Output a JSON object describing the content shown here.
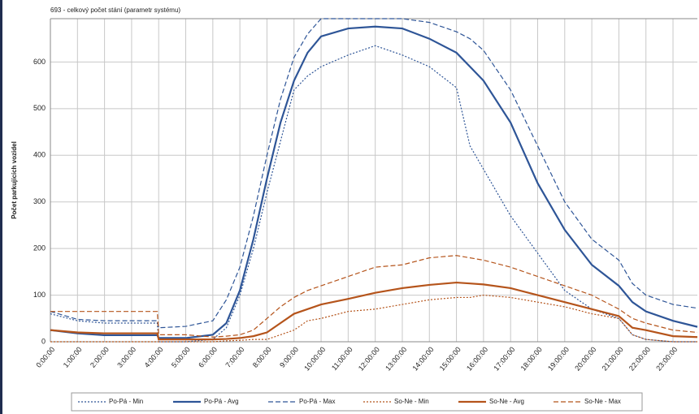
{
  "chart_data": {
    "type": "line",
    "annotation": {
      "text": "693 - celkový počet stání (parametr systému)",
      "value": 693
    },
    "y_label": "Počet parkujících vozidel",
    "grid": true,
    "legend": "bottom",
    "xlim": [
      0,
      23.9
    ],
    "ylim": [
      0,
      693
    ],
    "yticks": [
      0,
      100,
      200,
      300,
      400,
      500,
      600
    ],
    "xticks": [
      {
        "value": 0,
        "label": "0:00:00"
      },
      {
        "value": 1,
        "label": "1:00:00"
      },
      {
        "value": 2,
        "label": "2:00:00"
      },
      {
        "value": 3,
        "label": "3:00:00"
      },
      {
        "value": 4,
        "label": "4:00:00"
      },
      {
        "value": 5,
        "label": "5:00:00"
      },
      {
        "value": 6,
        "label": "6:00:00"
      },
      {
        "value": 7,
        "label": "7:00:00"
      },
      {
        "value": 8,
        "label": "8:00:00"
      },
      {
        "value": 9,
        "label": "9:00:00"
      },
      {
        "value": 10,
        "label": "10:00:00"
      },
      {
        "value": 11,
        "label": "11:00:00"
      },
      {
        "value": 12,
        "label": "12:00:00"
      },
      {
        "value": 13,
        "label": "13:00:00"
      },
      {
        "value": 14,
        "label": "14:00:00"
      },
      {
        "value": 15,
        "label": "15:00:00"
      },
      {
        "value": 16,
        "label": "16:00:00"
      },
      {
        "value": 17,
        "label": "17:00:00"
      },
      {
        "value": 18,
        "label": "18:00:00"
      },
      {
        "value": 19,
        "label": "19:00:00"
      },
      {
        "value": 20,
        "label": "20:00:00"
      },
      {
        "value": 21,
        "label": "21:00:00"
      },
      {
        "value": 22,
        "label": "22:00:00"
      },
      {
        "value": 23,
        "label": "23:00:00"
      }
    ],
    "x": [
      0,
      1,
      2,
      3,
      3.95,
      4,
      5,
      6,
      6.5,
      7,
      7.5,
      8,
      8.5,
      9,
      9.5,
      10,
      11,
      12,
      13,
      14,
      15,
      15.5,
      16,
      17,
      18,
      19,
      20,
      21,
      21.5,
      22,
      23,
      23.9
    ],
    "series": [
      {
        "name": "Po-Pá - Min",
        "color": "#2e5597",
        "dash": "dotted",
        "values": [
          60,
          45,
          40,
          40,
          40,
          0,
          0,
          5,
          30,
          100,
          200,
          320,
          430,
          540,
          570,
          590,
          615,
          635,
          615,
          590,
          545,
          420,
          370,
          270,
          190,
          110,
          70,
          50,
          15,
          5,
          0,
          0
        ]
      },
      {
        "name": "Po-Pá - Avg",
        "color": "#2e5597",
        "dash": "solid",
        "values": [
          25,
          18,
          14,
          14,
          14,
          8,
          8,
          15,
          40,
          110,
          220,
          350,
          470,
          560,
          620,
          655,
          672,
          676,
          672,
          650,
          620,
          590,
          560,
          470,
          340,
          240,
          165,
          120,
          85,
          65,
          45,
          32
        ]
      },
      {
        "name": "Po-Pá - Max",
        "color": "#2e5597",
        "dash": "dashed",
        "values": [
          65,
          48,
          45,
          45,
          45,
          30,
          33,
          45,
          90,
          160,
          270,
          400,
          520,
          610,
          660,
          693,
          693,
          693,
          693,
          685,
          665,
          650,
          625,
          540,
          420,
          300,
          220,
          175,
          125,
          100,
          80,
          72
        ]
      },
      {
        "name": "So-Ne - Min",
        "color": "#b5541b",
        "dash": "dotted",
        "values": [
          0,
          0,
          0,
          0,
          0,
          0,
          0,
          0,
          2,
          3,
          5,
          5,
          15,
          25,
          45,
          50,
          65,
          70,
          80,
          90,
          95,
          95,
          100,
          95,
          85,
          75,
          60,
          50,
          15,
          5,
          0,
          0
        ]
      },
      {
        "name": "So-Ne - Avg",
        "color": "#b5541b",
        "dash": "solid",
        "values": [
          25,
          20,
          18,
          18,
          18,
          5,
          5,
          5,
          6,
          8,
          12,
          20,
          40,
          60,
          70,
          80,
          92,
          105,
          115,
          122,
          127,
          125,
          123,
          115,
          100,
          85,
          70,
          55,
          30,
          25,
          12,
          10
        ]
      },
      {
        "name": "So-Ne - Max",
        "color": "#b5541b",
        "dash": "dashed",
        "values": [
          65,
          65,
          65,
          65,
          65,
          15,
          15,
          10,
          12,
          15,
          25,
          50,
          75,
          95,
          110,
          120,
          140,
          160,
          165,
          180,
          185,
          180,
          175,
          160,
          140,
          120,
          100,
          70,
          50,
          40,
          25,
          20
        ]
      }
    ]
  }
}
